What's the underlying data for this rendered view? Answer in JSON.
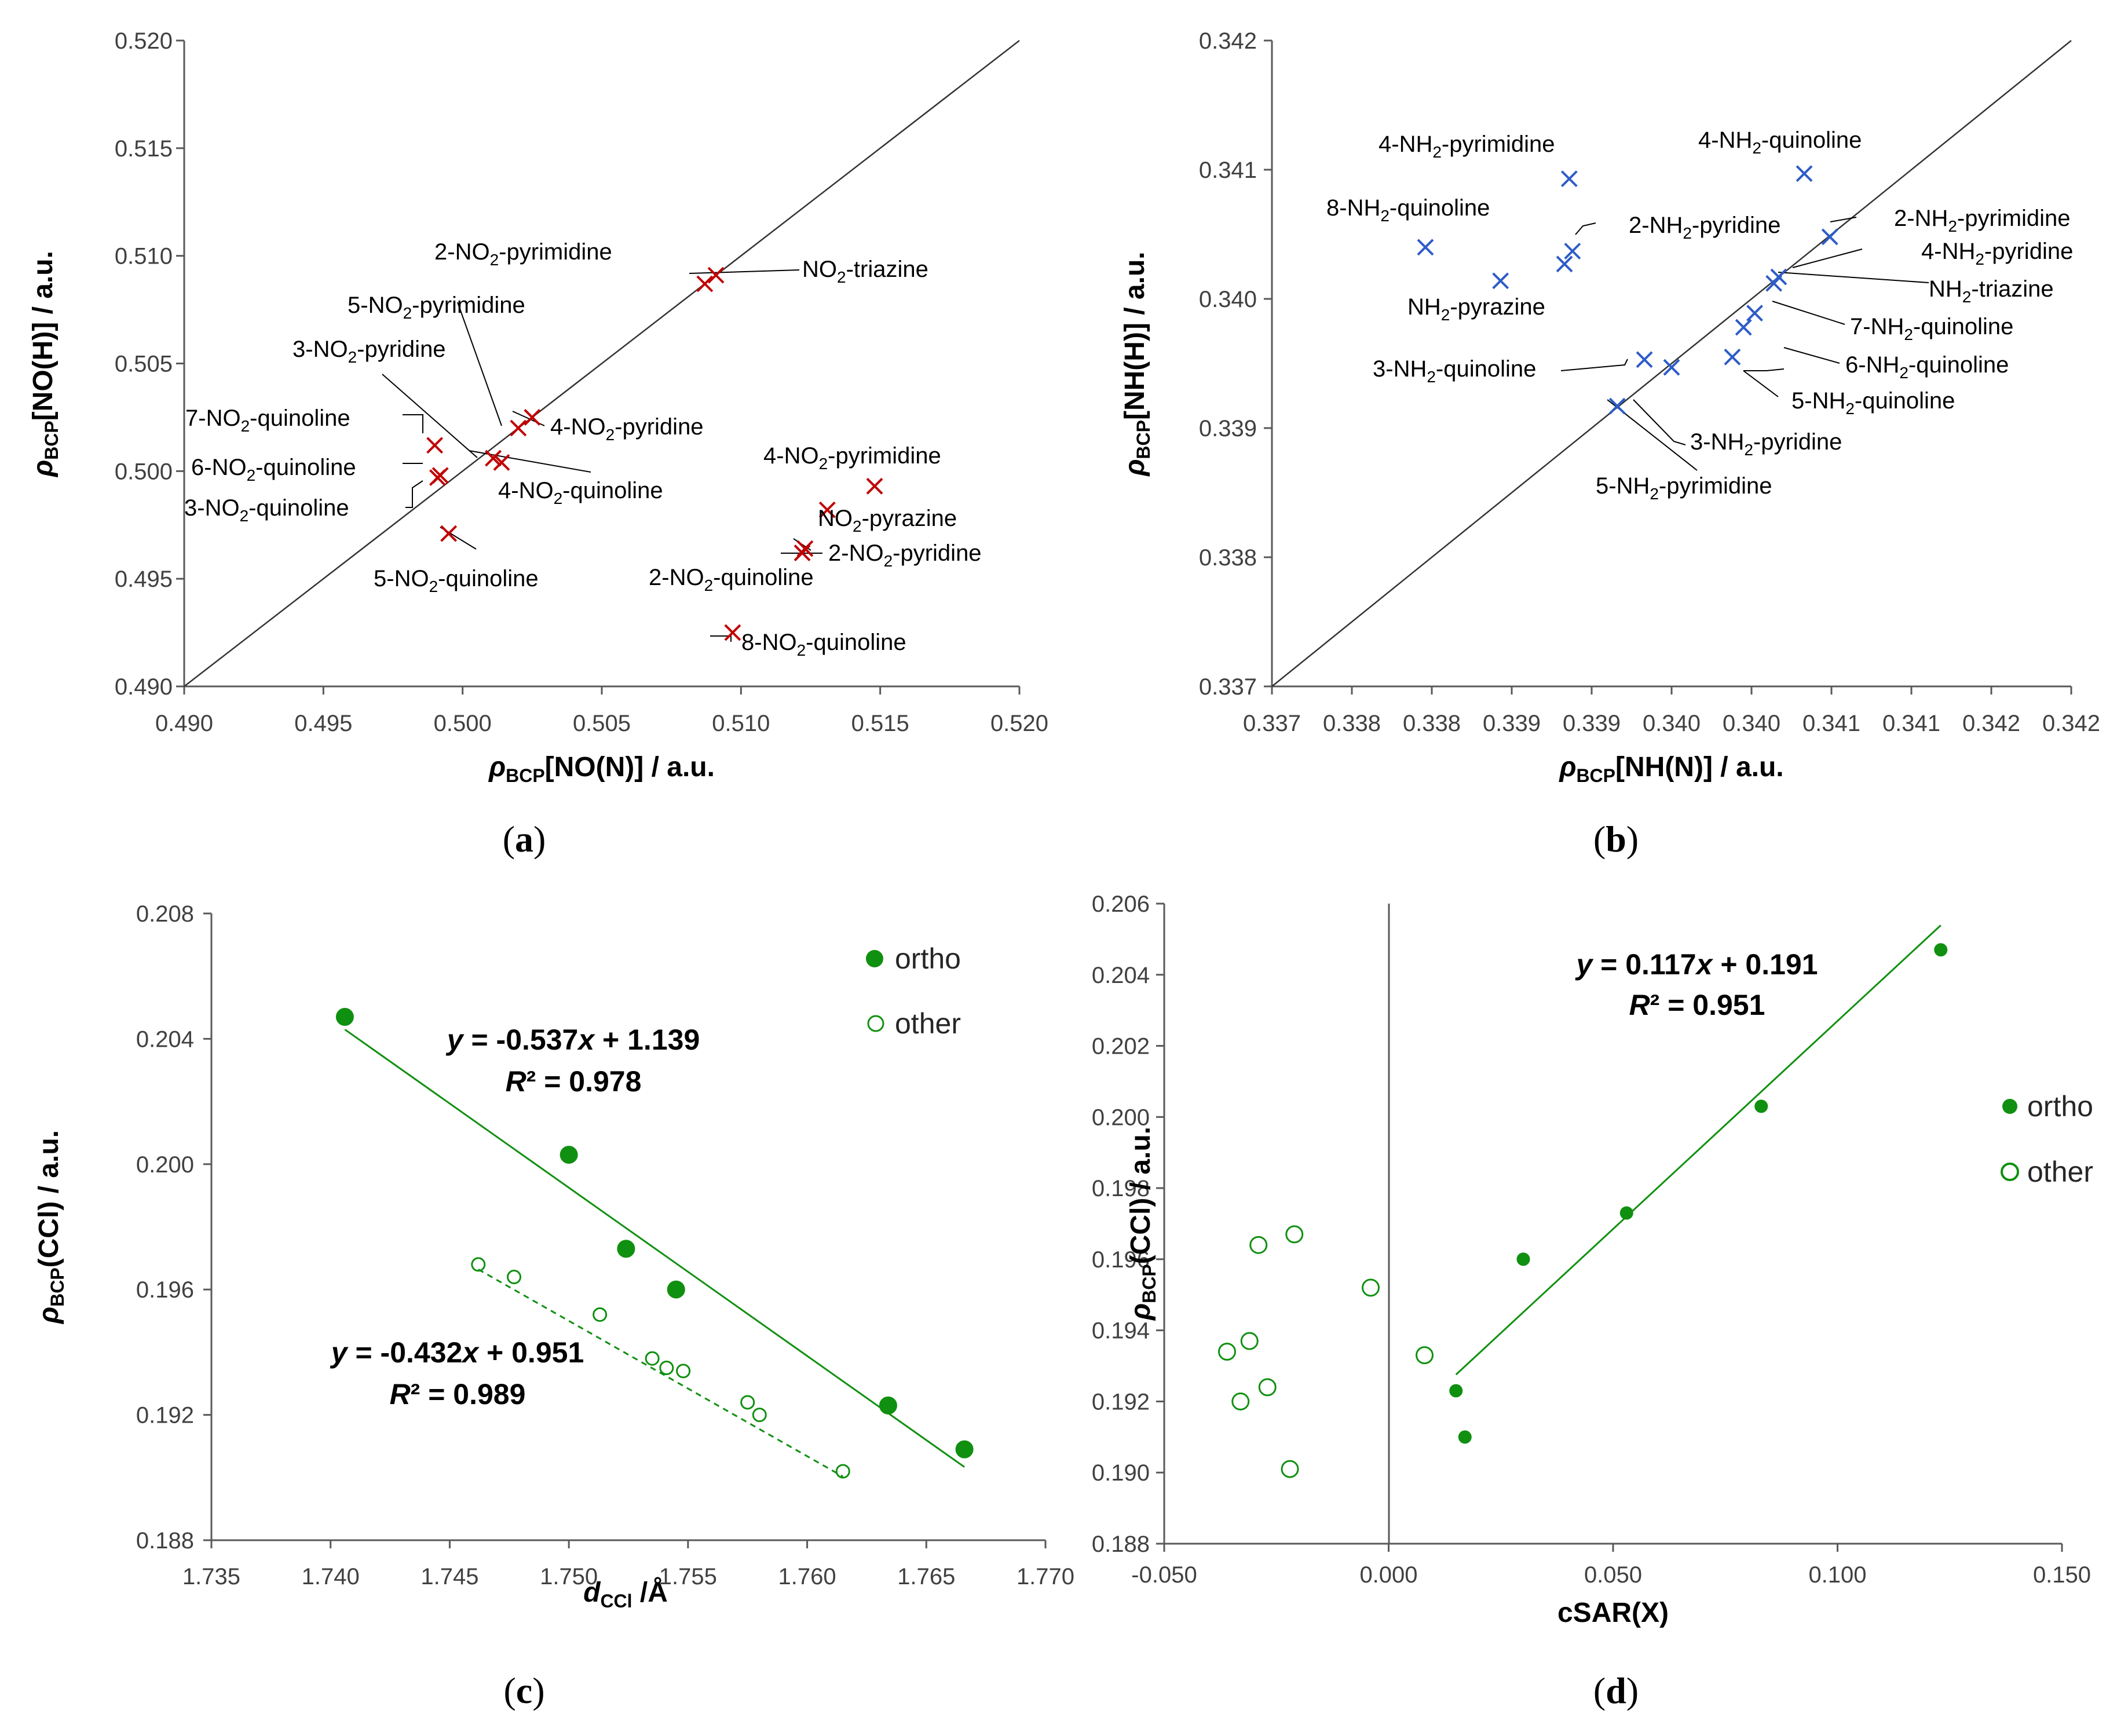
{
  "chart_data": [
    {
      "panel": "(a)",
      "type": "scatter",
      "xlabel": "ρBCP[NO(N)] / a.u.",
      "ylabel": "ρBCP[NO(H)] / a.u.",
      "xlim": [
        0.49,
        0.52
      ],
      "ylim": [
        0.49,
        0.52
      ],
      "xticks": [
        "0.490",
        "0.495",
        "0.500",
        "0.505",
        "0.510",
        "0.515",
        "0.520"
      ],
      "yticks": [
        "0.490",
        "0.495",
        "0.500",
        "0.505",
        "0.510",
        "0.515",
        "0.520"
      ],
      "marker_color": "#C00000",
      "reference_line": "y = x",
      "points": [
        {
          "label": "2-NO2-pyrimidine",
          "x": 0.5087,
          "y": 0.5087
        },
        {
          "label": "NO2-triazine",
          "x": 0.5091,
          "y": 0.5091
        },
        {
          "label": "5-NO2-pyrimidine",
          "x": 0.502,
          "y": 0.502
        },
        {
          "label": "4-NO2-pyridine",
          "x": 0.5025,
          "y": 0.5025
        },
        {
          "label": "3-NO2-pyridine",
          "x": 0.5011,
          "y": 0.5006
        },
        {
          "label": "4-NO2-quinoline",
          "x": 0.5014,
          "y": 0.5004
        },
        {
          "label": "7-NO2-quinoline",
          "x": 0.499,
          "y": 0.5012
        },
        {
          "label": "6-NO2-quinoline",
          "x": 0.4991,
          "y": 0.4997
        },
        {
          "label": "3-NO2-quinoline",
          "x": 0.4992,
          "y": 0.4998
        },
        {
          "label": "5-NO2-quinoline",
          "x": 0.4995,
          "y": 0.4971
        },
        {
          "label": "4-NO2-pyrimidine",
          "x": 0.5148,
          "y": 0.4993
        },
        {
          "label": "NO2-pyrazine",
          "x": 0.5131,
          "y": 0.4982
        },
        {
          "label": "2-NO2-pyridine",
          "x": 0.5123,
          "y": 0.4964
        },
        {
          "label": "2-NO2-quinoline",
          "x": 0.5122,
          "y": 0.4962
        },
        {
          "label": "8-NO2-quinoline",
          "x": 0.5097,
          "y": 0.4925
        }
      ]
    },
    {
      "panel": "(b)",
      "type": "scatter",
      "xlabel": "ρBCP[NH(N)] / a.u.",
      "ylabel": "ρBCP[NH(H)] / a.u.",
      "xlim": [
        0.337,
        0.342
      ],
      "ylim": [
        0.337,
        0.342
      ],
      "xticks": [
        "0.337",
        "0.338",
        "0.338",
        "0.339",
        "0.339",
        "0.340",
        "0.340",
        "0.341",
        "0.341",
        "0.342",
        "0.342"
      ],
      "yticks": [
        "0.337",
        "0.338",
        "0.339",
        "0.340",
        "0.341",
        "0.342"
      ],
      "marker_color": "#2E5CC8",
      "reference_line": "y = x",
      "points": [
        {
          "label": "4-NH2-pyrimidine",
          "x": 0.33886,
          "y": 0.34093
        },
        {
          "label": "4-NH2-quinoline",
          "x": 0.34033,
          "y": 0.34097
        },
        {
          "label": "8-NH2-quinoline",
          "x": 0.33796,
          "y": 0.3404
        },
        {
          "label": "2-NH2-pyridine",
          "x": 0.33888,
          "y": 0.34037
        },
        {
          "label": "2-NH2-pyridine",
          "x": 0.33883,
          "y": 0.34027
        },
        {
          "label": "NH2-pyrazine",
          "x": 0.33843,
          "y": 0.34014
        },
        {
          "label": "2-NH2-pyrimidine",
          "x": 0.34049,
          "y": 0.34048
        },
        {
          "label": "4-NH2-pyridine",
          "x": 0.34017,
          "y": 0.34017
        },
        {
          "label": "NH2-triazine",
          "x": 0.34014,
          "y": 0.34012
        },
        {
          "label": "7-NH2-quinoline",
          "x": 0.34002,
          "y": 0.33989
        },
        {
          "label": "6-NH2-quinoline",
          "x": 0.33995,
          "y": 0.33978
        },
        {
          "label": "5-NH2-quinoline",
          "x": 0.33988,
          "y": 0.33955
        },
        {
          "label": "3-NH2-quinoline",
          "x": 0.33933,
          "y": 0.33953
        },
        {
          "label": "3-NH2-pyridine",
          "x": 0.3395,
          "y": 0.33947
        },
        {
          "label": "5-NH2-pyrimidine",
          "x": 0.33916,
          "y": 0.33917
        }
      ]
    },
    {
      "panel": "(c)",
      "type": "scatter",
      "xlabel": "dCCl /Å",
      "ylabel": "ρBCP(CCl) / a.u.",
      "xlim": [
        1.735,
        1.77
      ],
      "ylim": [
        0.188,
        0.208
      ],
      "xticks": [
        "1.735",
        "1.740",
        "1.745",
        "1.750",
        "1.755",
        "1.760",
        "1.765",
        "1.770"
      ],
      "yticks": [
        "0.188",
        "0.192",
        "0.196",
        "0.200",
        "0.204",
        "0.208"
      ],
      "marker_color": "#109010",
      "legend": [
        "ortho",
        "other"
      ],
      "equations": [
        {
          "text": "y = -0.537x + 1.139",
          "r2": "R² = 0.978"
        },
        {
          "text": "y = -0.432x + 0.951",
          "r2": "R² = 0.989"
        }
      ],
      "series": [
        {
          "name": "ortho",
          "points": [
            [
              1.7406,
              0.2047
            ],
            [
              1.75,
              0.2003
            ],
            [
              1.7524,
              0.1973
            ],
            [
              1.7545,
              0.196
            ],
            [
              1.7634,
              0.1923
            ],
            [
              1.7666,
              0.1909
            ]
          ],
          "trend": {
            "slope": -0.537,
            "intercept": 1.139,
            "x": [
              1.7406,
              1.7666
            ]
          }
        },
        {
          "name": "other",
          "points": [
            [
              1.7462,
              0.1968
            ],
            [
              1.7477,
              0.1964
            ],
            [
              1.7513,
              0.1952
            ],
            [
              1.7535,
              0.1938
            ],
            [
              1.7541,
              0.1935
            ],
            [
              1.7548,
              0.1934
            ],
            [
              1.7575,
              0.1924
            ],
            [
              1.758,
              0.192
            ],
            [
              1.7615,
              0.1902
            ]
          ],
          "trend": {
            "slope": -0.432,
            "intercept": 0.951,
            "x": [
              1.7462,
              1.7615
            ]
          }
        }
      ]
    },
    {
      "panel": "(d)",
      "type": "scatter",
      "xlabel": "cSAR(X)",
      "ylabel": "ρBCP(CCl) / a.u.",
      "xlim": [
        -0.05,
        0.15
      ],
      "ylim": [
        0.188,
        0.206
      ],
      "xticks": [
        "-0.050",
        "0.000",
        "0.050",
        "0.100",
        "0.150"
      ],
      "yticks": [
        "0.188",
        "0.190",
        "0.192",
        "0.194",
        "0.196",
        "0.198",
        "0.200",
        "0.202",
        "0.204",
        "0.206"
      ],
      "marker_color": "#109010",
      "legend": [
        "ortho",
        "other"
      ],
      "equations": [
        {
          "text": "y = 0.117x + 0.191",
          "r2": "R² = 0.951"
        }
      ],
      "series": [
        {
          "name": "ortho",
          "points": [
            [
              0.015,
              0.1923
            ],
            [
              0.017,
              0.191
            ],
            [
              0.03,
              0.196
            ],
            [
              0.053,
              0.1973
            ],
            [
              0.083,
              0.2003
            ],
            [
              0.123,
              0.2047
            ]
          ],
          "trend": {
            "slope": 0.117,
            "intercept": 0.191,
            "x": [
              0.015,
              0.123
            ]
          }
        },
        {
          "name": "other",
          "points": [
            [
              -0.036,
              0.1934
            ],
            [
              -0.031,
              0.1937
            ],
            [
              -0.029,
              0.1964
            ],
            [
              -0.033,
              0.192
            ],
            [
              -0.027,
              0.1924
            ],
            [
              -0.021,
              0.1967
            ],
            [
              -0.004,
              0.1952
            ],
            [
              0.008,
              0.1933
            ],
            [
              -0.022,
              0.1901
            ]
          ]
        }
      ]
    }
  ]
}
